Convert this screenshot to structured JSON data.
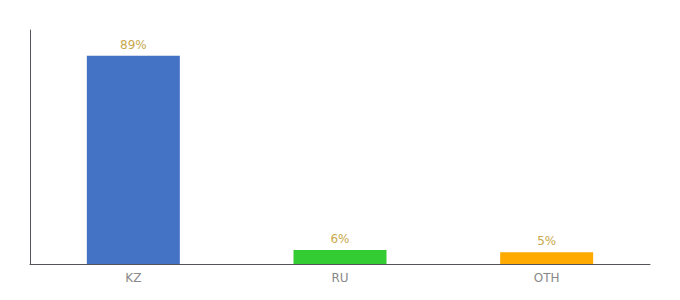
{
  "chart_data": {
    "type": "bar",
    "categories": [
      "KZ",
      "RU",
      "OTH"
    ],
    "values": [
      89,
      6,
      5
    ],
    "value_labels": [
      "89%",
      "6%",
      "5%"
    ],
    "colors": [
      "#4472c4",
      "#33cc33",
      "#ffaa00"
    ],
    "ylim": [
      0,
      100
    ],
    "data_labels": true,
    "tick_labels": "x",
    "grid": false
  }
}
